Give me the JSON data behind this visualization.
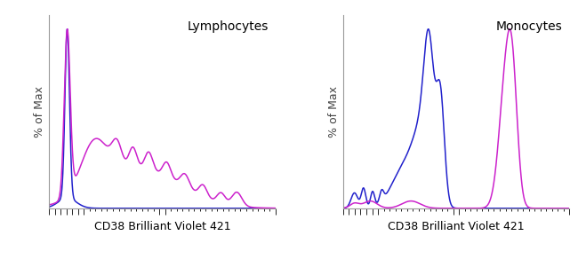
{
  "title_left": "Lymphocytes",
  "title_right": "Monocytes",
  "xlabel": "CD38 Brilliant Violet 421",
  "ylabel": "% of Max",
  "blue_color": "#2222CC",
  "magenta_color": "#CC22CC",
  "bg_color": "#FFFFFF",
  "spine_color": "#999999",
  "ylim": [
    0,
    1.08
  ],
  "xlim": [
    0.0,
    1.0
  ],
  "figsize": [
    6.5,
    3.01
  ],
  "dpi": 100
}
